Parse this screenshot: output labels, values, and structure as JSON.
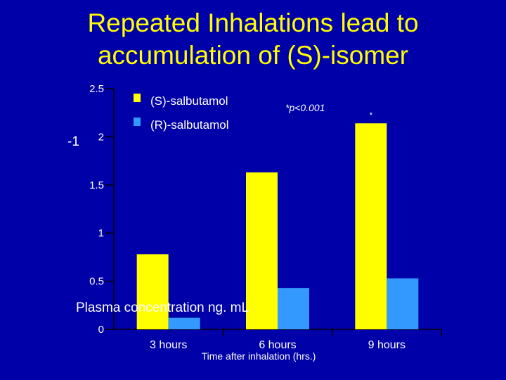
{
  "slide": {
    "title_line1": "Repeated Inhalations lead to",
    "title_line2": "accumulation of (S)-isomer"
  },
  "chart_data": {
    "type": "bar",
    "categories": [
      "3 hours",
      "6 hours",
      "9 hours"
    ],
    "series": [
      {
        "name": "(S)-salbutamol",
        "color": "#FFFF00",
        "values": [
          0.78,
          1.63,
          2.14
        ]
      },
      {
        "name": "(R)-salbutamol",
        "color": "#3399FF",
        "values": [
          0.12,
          0.43,
          0.53
        ]
      }
    ],
    "ylim": [
      0,
      2.5
    ],
    "yticks": [
      0,
      0.5,
      1,
      1.5,
      2,
      2.5
    ],
    "ytick_labels": [
      "0",
      "0.5",
      "1",
      "1.5",
      "2",
      "2.5"
    ],
    "ylabel": "Plasma concentration ng. mL",
    "ylabel_exponent": "-1",
    "xlabel": "Time after inhalation (hrs.)",
    "annotation": "*p<0.001",
    "significance_marks": [
      "",
      "",
      "*"
    ],
    "legend_position": "top-left",
    "grid": false
  }
}
